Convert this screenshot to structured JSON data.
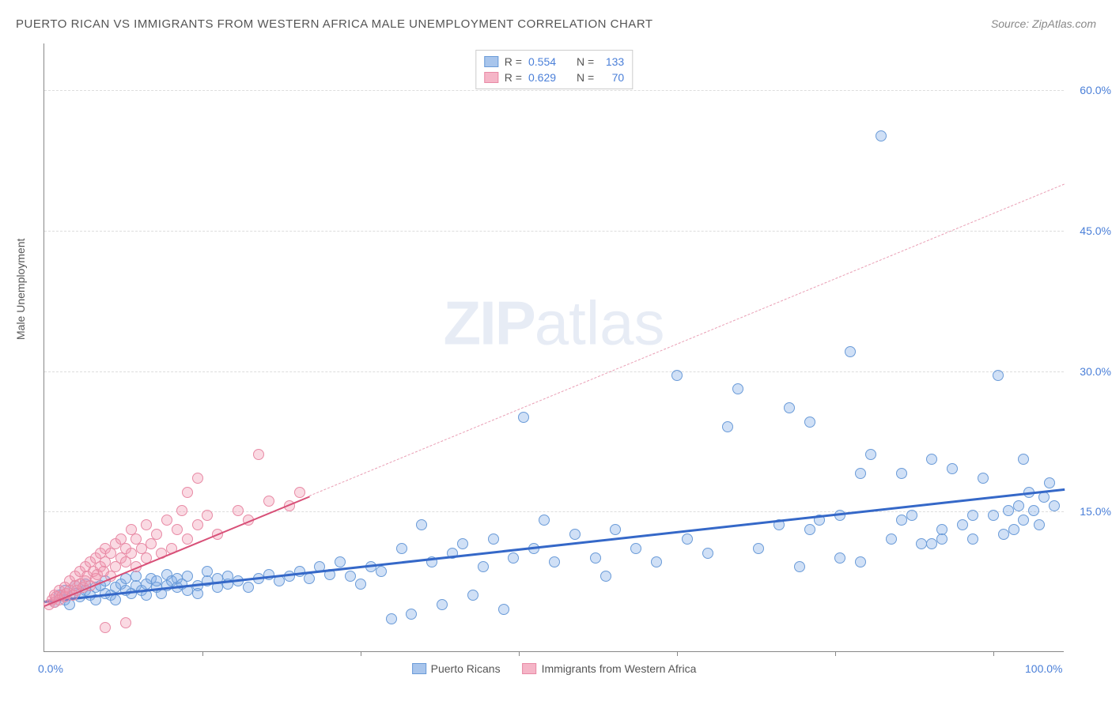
{
  "title": "PUERTO RICAN VS IMMIGRANTS FROM WESTERN AFRICA MALE UNEMPLOYMENT CORRELATION CHART",
  "source": "Source: ZipAtlas.com",
  "ylabel": "Male Unemployment",
  "watermark_bold": "ZIP",
  "watermark_rest": "atlas",
  "xlim": [
    0,
    100
  ],
  "ylim": [
    0,
    65
  ],
  "yticks": [
    {
      "v": 15,
      "label": "15.0%"
    },
    {
      "v": 30,
      "label": "30.0%"
    },
    {
      "v": 45,
      "label": "45.0%"
    },
    {
      "v": 60,
      "label": "60.0%"
    }
  ],
  "xticks": [
    {
      "v": 0,
      "label": "0.0%"
    },
    {
      "v": 100,
      "label": "100.0%"
    }
  ],
  "xtick_minor": [
    15.5,
    31,
    46.5,
    62,
    77.5,
    93
  ],
  "background_color": "#ffffff",
  "grid_color": "#dddddd",
  "series": [
    {
      "name": "Puerto Ricans",
      "fill": "rgba(120,165,230,0.35)",
      "stroke": "#6a9bd8",
      "swatch_fill": "#a8c5ec",
      "swatch_stroke": "#6a9bd8",
      "r": 7,
      "R_label": "R =",
      "R_value": "0.554",
      "N_label": "N =",
      "N_value": "133",
      "trend": {
        "x1": 0,
        "y1": 5.5,
        "x2": 100,
        "y2": 17.5,
        "dash_from_x": 100,
        "color": "#3568c8",
        "width": 3
      },
      "points": [
        [
          1,
          5.2
        ],
        [
          1.5,
          6
        ],
        [
          2,
          5.5
        ],
        [
          2,
          6.5
        ],
        [
          2.5,
          5
        ],
        [
          3,
          6.2
        ],
        [
          3,
          7
        ],
        [
          3.5,
          5.8
        ],
        [
          4,
          6.5
        ],
        [
          4,
          7.2
        ],
        [
          4.5,
          6
        ],
        [
          5,
          6.8
        ],
        [
          5,
          5.5
        ],
        [
          5.5,
          7
        ],
        [
          6,
          6.2
        ],
        [
          6,
          7.5
        ],
        [
          6.5,
          6
        ],
        [
          7,
          6.8
        ],
        [
          7,
          5.5
        ],
        [
          7.5,
          7.2
        ],
        [
          8,
          6.5
        ],
        [
          8,
          7.8
        ],
        [
          8.5,
          6.2
        ],
        [
          9,
          7
        ],
        [
          9,
          8
        ],
        [
          9.5,
          6.5
        ],
        [
          10,
          7.2
        ],
        [
          10,
          6
        ],
        [
          10.5,
          7.8
        ],
        [
          11,
          6.8
        ],
        [
          11,
          7.5
        ],
        [
          11.5,
          6.2
        ],
        [
          12,
          7
        ],
        [
          12,
          8.2
        ],
        [
          12.5,
          7.5
        ],
        [
          13,
          6.8
        ],
        [
          13,
          7.8
        ],
        [
          13.5,
          7.2
        ],
        [
          14,
          6.5
        ],
        [
          14,
          8
        ],
        [
          15,
          7
        ],
        [
          15,
          6.2
        ],
        [
          16,
          7.5
        ],
        [
          16,
          8.5
        ],
        [
          17,
          7.8
        ],
        [
          17,
          6.8
        ],
        [
          18,
          7.2
        ],
        [
          18,
          8
        ],
        [
          19,
          7.5
        ],
        [
          20,
          6.8
        ],
        [
          21,
          7.8
        ],
        [
          22,
          8.2
        ],
        [
          23,
          7.5
        ],
        [
          24,
          8
        ],
        [
          25,
          8.5
        ],
        [
          26,
          7.8
        ],
        [
          27,
          9
        ],
        [
          28,
          8.2
        ],
        [
          29,
          9.5
        ],
        [
          30,
          8
        ],
        [
          31,
          7.2
        ],
        [
          32,
          9
        ],
        [
          33,
          8.5
        ],
        [
          34,
          3.5
        ],
        [
          35,
          11
        ],
        [
          36,
          4
        ],
        [
          37,
          13.5
        ],
        [
          38,
          9.5
        ],
        [
          39,
          5
        ],
        [
          40,
          10.5
        ],
        [
          41,
          11.5
        ],
        [
          42,
          6
        ],
        [
          43,
          9
        ],
        [
          44,
          12
        ],
        [
          45,
          4.5
        ],
        [
          46,
          10
        ],
        [
          47,
          25
        ],
        [
          48,
          11
        ],
        [
          49,
          14
        ],
        [
          50,
          9.5
        ],
        [
          52,
          12.5
        ],
        [
          54,
          10
        ],
        [
          55,
          8
        ],
        [
          56,
          13
        ],
        [
          58,
          11
        ],
        [
          60,
          9.5
        ],
        [
          62,
          29.5
        ],
        [
          63,
          12
        ],
        [
          65,
          10.5
        ],
        [
          67,
          24
        ],
        [
          68,
          28
        ],
        [
          70,
          11
        ],
        [
          72,
          13.5
        ],
        [
          73,
          26
        ],
        [
          74,
          9
        ],
        [
          75,
          24.5
        ],
        [
          76,
          14
        ],
        [
          78,
          10
        ],
        [
          79,
          32
        ],
        [
          80,
          9.5
        ],
        [
          81,
          21
        ],
        [
          82,
          55
        ],
        [
          83,
          12
        ],
        [
          84,
          19
        ],
        [
          85,
          14.5
        ],
        [
          86,
          11.5
        ],
        [
          87,
          20.5
        ],
        [
          88,
          13
        ],
        [
          89,
          19.5
        ],
        [
          90,
          13.5
        ],
        [
          91,
          12
        ],
        [
          92,
          18.5
        ],
        [
          93,
          14.5
        ],
        [
          93.5,
          29.5
        ],
        [
          94,
          12.5
        ],
        [
          94.5,
          15
        ],
        [
          95,
          13
        ],
        [
          95.5,
          15.5
        ],
        [
          96,
          14
        ],
        [
          96.5,
          17
        ],
        [
          97,
          15
        ],
        [
          97.5,
          13.5
        ],
        [
          98,
          16.5
        ],
        [
          98.5,
          18
        ],
        [
          99,
          15.5
        ],
        [
          96,
          20.5
        ],
        [
          87,
          11.5
        ],
        [
          91,
          14.5
        ],
        [
          88,
          12
        ],
        [
          84,
          14
        ],
        [
          78,
          14.5
        ],
        [
          80,
          19
        ],
        [
          75,
          13
        ]
      ]
    },
    {
      "name": "Immigrants from Western Africa",
      "fill": "rgba(240,150,175,0.35)",
      "stroke": "#e88aa5",
      "swatch_fill": "#f5b5c7",
      "swatch_stroke": "#e88aa5",
      "r": 7,
      "R_label": "R =",
      "R_value": "0.629",
      "N_label": "N =",
      "N_value": "70",
      "trend": {
        "x1": 0,
        "y1": 5,
        "x2": 100,
        "y2": 50,
        "dash_from_x": 26,
        "color": "#d85078",
        "width": 2.5
      },
      "points": [
        [
          0.5,
          5
        ],
        [
          0.8,
          5.5
        ],
        [
          1,
          5.2
        ],
        [
          1,
          6
        ],
        [
          1.2,
          5.8
        ],
        [
          1.5,
          5.5
        ],
        [
          1.5,
          6.5
        ],
        [
          1.8,
          6
        ],
        [
          2,
          5.8
        ],
        [
          2,
          6.8
        ],
        [
          2.2,
          6.2
        ],
        [
          2.5,
          6.5
        ],
        [
          2.5,
          7.5
        ],
        [
          2.8,
          6
        ],
        [
          3,
          7
        ],
        [
          3,
          8
        ],
        [
          3.2,
          6.5
        ],
        [
          3.5,
          7.2
        ],
        [
          3.5,
          8.5
        ],
        [
          3.8,
          6.8
        ],
        [
          4,
          7.5
        ],
        [
          4,
          9
        ],
        [
          4.2,
          8
        ],
        [
          4.5,
          7
        ],
        [
          4.5,
          9.5
        ],
        [
          4.8,
          8.5
        ],
        [
          5,
          7.8
        ],
        [
          5,
          10
        ],
        [
          5.2,
          8.2
        ],
        [
          5.5,
          9
        ],
        [
          5.5,
          10.5
        ],
        [
          5.8,
          8.5
        ],
        [
          6,
          9.5
        ],
        [
          6,
          11
        ],
        [
          6.5,
          8
        ],
        [
          6.5,
          10.5
        ],
        [
          7,
          9
        ],
        [
          7,
          11.5
        ],
        [
          7.5,
          10
        ],
        [
          7.5,
          12
        ],
        [
          8,
          9.5
        ],
        [
          8,
          11
        ],
        [
          8.5,
          10.5
        ],
        [
          8.5,
          13
        ],
        [
          9,
          9
        ],
        [
          9,
          12
        ],
        [
          9.5,
          11
        ],
        [
          10,
          10
        ],
        [
          10,
          13.5
        ],
        [
          10.5,
          11.5
        ],
        [
          11,
          12.5
        ],
        [
          11.5,
          10.5
        ],
        [
          12,
          14
        ],
        [
          12.5,
          11
        ],
        [
          13,
          13
        ],
        [
          13.5,
          15
        ],
        [
          14,
          12
        ],
        [
          14,
          17
        ],
        [
          15,
          13.5
        ],
        [
          15,
          18.5
        ],
        [
          16,
          14.5
        ],
        [
          17,
          12.5
        ],
        [
          19,
          15
        ],
        [
          20,
          14
        ],
        [
          21,
          21
        ],
        [
          22,
          16
        ],
        [
          24,
          15.5
        ],
        [
          25,
          17
        ],
        [
          8,
          3
        ],
        [
          6,
          2.5
        ]
      ]
    }
  ]
}
